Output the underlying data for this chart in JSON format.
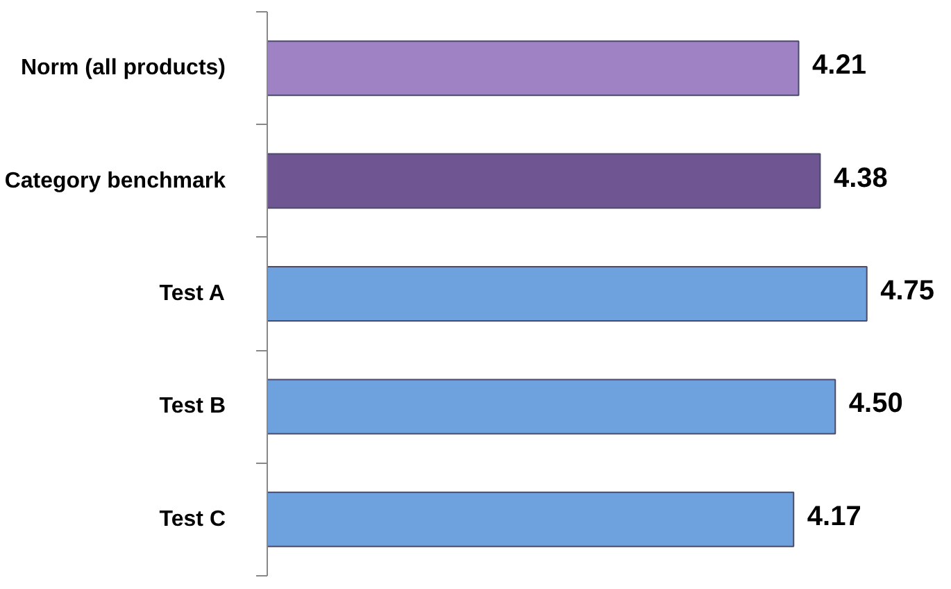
{
  "chart_data": {
    "type": "bar",
    "orientation": "horizontal",
    "categories": [
      "Norm (all products)",
      "Category benchmark",
      "Test A",
      "Test B",
      "Test C"
    ],
    "values": [
      4.21,
      4.38,
      4.75,
      4.5,
      4.17
    ],
    "value_labels": [
      "4.21",
      "4.38",
      "4.75",
      "4.50",
      "4.17"
    ],
    "colors": [
      "#9e82c4",
      "#6f5592",
      "#6ea2df",
      "#6ea2df",
      "#6ea2df"
    ],
    "grid": false,
    "tick_labels": "y"
  }
}
